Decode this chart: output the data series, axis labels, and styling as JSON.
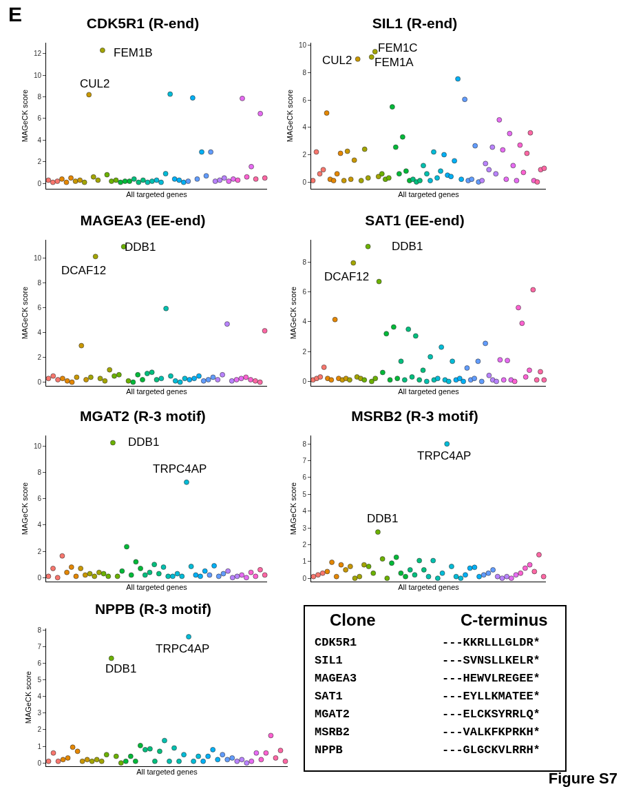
{
  "chart_data": [
    {
      "type": "scatter",
      "title": "CDK5R1 (R-end)",
      "xlabel": "All targeted genes",
      "ylabel": "MAGeCK score",
      "ylim": [
        -0.5,
        13
      ],
      "yticks": [
        0,
        2,
        4,
        6,
        8,
        10,
        12
      ],
      "tick_labels": "y",
      "grid": false,
      "legend": false,
      "marker": "circle",
      "categories": [
        null,
        null,
        null,
        null,
        null,
        null,
        null,
        null,
        null,
        null,
        null,
        null,
        null,
        null,
        null,
        null,
        null,
        null,
        null,
        null,
        null,
        null,
        null,
        null,
        null,
        null,
        null,
        null,
        null,
        null,
        null,
        null,
        null,
        null,
        null,
        null,
        null,
        null,
        null,
        null,
        null,
        null,
        null,
        null,
        null,
        null,
        null,
        null,
        null
      ],
      "values": [
        0.3,
        0.1,
        0.2,
        0.4,
        0.1,
        0.5,
        0.2,
        0.3,
        0.1,
        8.2,
        0.6,
        0.3,
        12.3,
        0.8,
        0.2,
        0.3,
        0.1,
        0.2,
        0.2,
        0.4,
        0.1,
        0.3,
        0.1,
        0.2,
        0.3,
        0.1,
        0.9,
        8.25,
        0.4,
        0.3,
        0.1,
        0.2,
        7.9,
        0.4,
        2.9,
        0.7,
        2.9,
        0.2,
        0.3,
        0.5,
        0.2,
        0.4,
        0.3,
        7.85,
        0.6,
        1.55,
        0.4,
        6.45,
        0.5
      ],
      "colors": [
        "#F8766D",
        "#F8766D",
        "#F8766D",
        "#E58700",
        "#E58700",
        "#E58700",
        "#C99800",
        "#C99800",
        "#A3A500",
        "#C99800",
        "#A3A500",
        "#A3A500",
        "#A3A500",
        "#6BB100",
        "#6BB100",
        "#6BB100",
        "#00BA38",
        "#00BA38",
        "#00BA38",
        "#00BF7D",
        "#00BF7D",
        "#00BF7D",
        "#00C0AF",
        "#00C0AF",
        "#00BCD8",
        "#00BCD8",
        "#00BCD8",
        "#00BCD8",
        "#00B0F6",
        "#00B0F6",
        "#00B0F6",
        "#619CFF",
        "#00B0F6",
        "#619CFF",
        "#00B0F6",
        "#619CFF",
        "#619CFF",
        "#B983FF",
        "#B983FF",
        "#B983FF",
        "#E76BF3",
        "#E76BF3",
        "#FD61D1",
        "#E76BF3",
        "#FD61D1",
        "#E76BF3",
        "#FF67A4",
        "#E76BF3",
        "#FF67A4"
      ],
      "annotations": [
        "E",
        "CUL2",
        "FEM1B"
      ]
    },
    {
      "type": "scatter",
      "title": "SIL1 (R-end)",
      "xlabel": "All targeted genes",
      "ylabel": "MAGeCK score",
      "ylim": [
        -0.5,
        10.2
      ],
      "yticks": [
        0,
        2,
        4,
        6,
        8,
        10
      ],
      "tick_labels": "y",
      "grid": false,
      "legend": false,
      "marker": "circle",
      "categories": [
        null,
        null,
        null,
        null,
        null,
        null,
        null,
        null,
        null,
        null,
        null,
        null,
        null,
        null,
        null,
        null,
        null,
        null,
        null,
        null,
        null,
        null,
        null,
        null,
        null,
        null,
        null,
        null,
        null,
        null,
        null,
        null,
        null,
        null,
        null,
        null,
        null,
        null,
        null,
        null,
        null,
        null,
        null,
        null,
        null,
        null,
        null,
        null,
        null,
        null,
        null,
        null,
        null,
        null,
        null,
        null,
        null,
        null,
        null,
        null,
        null,
        null,
        null,
        null,
        null,
        null,
        null,
        null
      ],
      "values": [
        0.1,
        2.2,
        0.6,
        0.9,
        5.05,
        0.2,
        0.1,
        0.6,
        2.1,
        0.1,
        2.25,
        0.2,
        1.6,
        9.0,
        0.1,
        2.4,
        0.3,
        9.15,
        9.55,
        0.4,
        0.6,
        0.2,
        0.3,
        5.5,
        2.55,
        0.6,
        3.3,
        0.8,
        0.1,
        0.2,
        0.0,
        0.1,
        1.2,
        0.6,
        0.1,
        2.2,
        0.3,
        0.8,
        2.0,
        0.5,
        0.4,
        1.55,
        7.55,
        0.2,
        6.05,
        0.1,
        0.2,
        2.65,
        0.0,
        0.1,
        1.35,
        0.9,
        2.55,
        0.6,
        4.55,
        2.35,
        0.2,
        3.55,
        1.2,
        0.1,
        2.7,
        0.7,
        2.1,
        3.6,
        0.1,
        0.0,
        0.9,
        1.0
      ],
      "colors": [
        "#F8766D",
        "#F8766D",
        "#F8766D",
        "#F8766D",
        "#E58700",
        "#E58700",
        "#E58700",
        "#E58700",
        "#E58700",
        "#C99800",
        "#C99800",
        "#C99800",
        "#C99800",
        "#C99800",
        "#A3A500",
        "#A3A500",
        "#A3A500",
        "#A3A500",
        "#A3A500",
        "#A3A500",
        "#6BB100",
        "#6BB100",
        "#6BB100",
        "#00BA38",
        "#00BA38",
        "#00BA38",
        "#00BA38",
        "#00BA38",
        "#00BA38",
        "#00BF7D",
        "#00BF7D",
        "#00BF7D",
        "#00C0AF",
        "#00C0AF",
        "#00BCD8",
        "#00BCD8",
        "#00BCD8",
        "#00BCD8",
        "#00B0F6",
        "#00B0F6",
        "#00B0F6",
        "#00B0F6",
        "#00B0F6",
        "#00B0F6",
        "#619CFF",
        "#619CFF",
        "#619CFF",
        "#619CFF",
        "#619CFF",
        "#B983FF",
        "#B983FF",
        "#B983FF",
        "#B983FF",
        "#B983FF",
        "#E76BF3",
        "#E76BF3",
        "#E76BF3",
        "#E76BF3",
        "#E76BF3",
        "#E76BF3",
        "#FD61D1",
        "#FD61D1",
        "#FF67A4",
        "#FF67A4",
        "#FD61D1",
        "#FF67A4",
        "#FF67A4",
        "#FF67A4"
      ],
      "annotations": [
        "CUL2",
        "FEM1C",
        "FEM1A"
      ]
    },
    {
      "type": "scatter",
      "title": "MAGEA3 (EE-end)",
      "xlabel": "All targeted genes",
      "ylabel": "MAGeCK score",
      "ylim": [
        -0.3,
        11.5
      ],
      "yticks": [
        0,
        2,
        4,
        6,
        8,
        10
      ],
      "tick_labels": "y",
      "grid": false,
      "legend": false,
      "marker": "circle",
      "categories": [
        null,
        null,
        null,
        null,
        null,
        null,
        null,
        null,
        null,
        null,
        null,
        null,
        null,
        null,
        null,
        null,
        null,
        null,
        null,
        null,
        null,
        null,
        null,
        null,
        null,
        null,
        null,
        null,
        null,
        null,
        null,
        null,
        null,
        null,
        null,
        null,
        null,
        null,
        null,
        null,
        null,
        null,
        null,
        null,
        null,
        null,
        null
      ],
      "values": [
        0.3,
        0.5,
        0.2,
        0.3,
        0.1,
        0.0,
        0.4,
        2.95,
        0.2,
        0.4,
        10.15,
        0.3,
        0.1,
        1.0,
        0.5,
        0.6,
        10.95,
        0.1,
        0.0,
        0.6,
        0.2,
        0.7,
        0.8,
        0.2,
        0.3,
        5.95,
        0.5,
        0.1,
        0.0,
        0.3,
        0.2,
        0.3,
        0.5,
        0.1,
        0.2,
        0.4,
        0.2,
        0.6,
        4.7,
        0.1,
        0.2,
        0.3,
        0.4,
        0.2,
        0.1,
        0.0,
        4.15
      ],
      "colors": [
        "#F8766D",
        "#F8766D",
        "#F8766D",
        "#E58700",
        "#E58700",
        "#E58700",
        "#C99800",
        "#C99800",
        "#C99800",
        "#A3A500",
        "#A3A500",
        "#A3A500",
        "#A3A500",
        "#A3A500",
        "#6BB100",
        "#6BB100",
        "#6BB100",
        "#6BB100",
        "#00BA38",
        "#00BA38",
        "#00BA38",
        "#00BF7D",
        "#00BF7D",
        "#00BF7D",
        "#00C0AF",
        "#00C0AF",
        "#00C0AF",
        "#00BCD8",
        "#00BCD8",
        "#00BCD8",
        "#00B0F6",
        "#00B0F6",
        "#00B0F6",
        "#619CFF",
        "#619CFF",
        "#619CFF",
        "#B983FF",
        "#B983FF",
        "#B983FF",
        "#B983FF",
        "#E76BF3",
        "#E76BF3",
        "#FD61D1",
        "#FD61D1",
        "#FF67A4",
        "#FF67A4",
        "#FF67A4"
      ],
      "annotations": [
        "DCAF12",
        "DDB1"
      ]
    },
    {
      "type": "scatter",
      "title": "SAT1 (EE-end)",
      "xlabel": "All targeted genes",
      "ylabel": "MAGeCK score",
      "ylim": [
        -0.3,
        9.5
      ],
      "yticks": [
        0,
        2,
        4,
        6,
        8
      ],
      "tick_labels": "y",
      "grid": false,
      "legend": false,
      "marker": "circle",
      "categories": [
        null,
        null,
        null,
        null,
        null,
        null,
        null,
        null,
        null,
        null,
        null,
        null,
        null,
        null,
        null,
        null,
        null,
        null,
        null,
        null,
        null,
        null,
        null,
        null,
        null,
        null,
        null,
        null,
        null,
        null,
        null,
        null,
        null,
        null,
        null,
        null,
        null,
        null,
        null,
        null,
        null,
        null,
        null,
        null,
        null,
        null,
        null,
        null,
        null,
        null,
        null,
        null,
        null,
        null,
        null,
        null,
        null,
        null,
        null,
        null,
        null,
        null,
        null,
        null
      ],
      "values": [
        0.1,
        0.2,
        0.3,
        0.95,
        0.2,
        0.1,
        4.15,
        0.2,
        0.1,
        0.2,
        0.1,
        7.95,
        0.3,
        0.2,
        0.1,
        9.05,
        0.0,
        0.2,
        6.7,
        0.6,
        3.2,
        0.1,
        3.65,
        0.2,
        1.35,
        0.1,
        3.5,
        0.3,
        3.05,
        0.1,
        0.75,
        0.0,
        1.65,
        0.1,
        0.2,
        2.3,
        0.1,
        0.0,
        1.35,
        0.1,
        0.2,
        0.0,
        0.9,
        0.1,
        0.2,
        1.35,
        0.0,
        2.55,
        0.4,
        0.1,
        0.0,
        1.45,
        0.1,
        1.4,
        0.1,
        0.0,
        4.95,
        3.9,
        0.3,
        0.75,
        6.15,
        0.1,
        0.65,
        0.1
      ],
      "colors": [
        "#F8766D",
        "#F8766D",
        "#F8766D",
        "#F8766D",
        "#E58700",
        "#E58700",
        "#E58700",
        "#E58700",
        "#C99800",
        "#C99800",
        "#A3A500",
        "#A3A500",
        "#A3A500",
        "#A3A500",
        "#6BB100",
        "#6BB100",
        "#6BB100",
        "#6BB100",
        "#6BB100",
        "#00BA38",
        "#00BA38",
        "#00BA38",
        "#00BA38",
        "#00BA38",
        "#00BF7D",
        "#00BF7D",
        "#00BF7D",
        "#00BF7D",
        "#00BF7D",
        "#00BF7D",
        "#00BF7D",
        "#00C0AF",
        "#00C0AF",
        "#00C0AF",
        "#00BCD8",
        "#00BCD8",
        "#00BCD8",
        "#00BCD8",
        "#00BCD8",
        "#00B0F6",
        "#00B0F6",
        "#00B0F6",
        "#619CFF",
        "#619CFF",
        "#619CFF",
        "#619CFF",
        "#619CFF",
        "#619CFF",
        "#B983FF",
        "#B983FF",
        "#B983FF",
        "#E76BF3",
        "#E76BF3",
        "#E76BF3",
        "#E76BF3",
        "#FD61D1",
        "#FD61D1",
        "#FD61D1",
        "#FD61D1",
        "#FD61D1",
        "#FF67A4",
        "#FF67A4",
        "#FF67A4",
        "#FF67A4"
      ],
      "annotations": [
        "DCAF12",
        "DDB1"
      ]
    },
    {
      "type": "scatter",
      "title": "MGAT2 (R-3 motif)",
      "xlabel": "All targeted genes",
      "ylabel": "MAGeCK score",
      "ylim": [
        -0.3,
        10.8
      ],
      "yticks": [
        0,
        2,
        4,
        6,
        8,
        10
      ],
      "tick_labels": "y",
      "grid": false,
      "legend": false,
      "marker": "circle",
      "categories": [
        null,
        null,
        null,
        null,
        null,
        null,
        null,
        null,
        null,
        null,
        null,
        null,
        null,
        null,
        null,
        null,
        null,
        null,
        null,
        null,
        null,
        null,
        null,
        null,
        null,
        null,
        null,
        null,
        null,
        null,
        null,
        null,
        null,
        null,
        null,
        null,
        null,
        null,
        null,
        null,
        null,
        null,
        null,
        null,
        null,
        null,
        null,
        null
      ],
      "values": [
        0.1,
        0.7,
        0.0,
        1.65,
        0.4,
        0.8,
        0.1,
        0.7,
        0.2,
        0.3,
        0.1,
        0.4,
        0.3,
        0.1,
        10.25,
        0.1,
        0.5,
        2.35,
        0.2,
        1.2,
        0.7,
        0.2,
        0.4,
        1.0,
        0.3,
        0.8,
        0.1,
        0.1,
        0.3,
        0.1,
        7.25,
        0.85,
        0.2,
        0.1,
        0.5,
        0.2,
        0.9,
        0.1,
        0.3,
        0.5,
        0.0,
        0.1,
        0.2,
        0.0,
        0.4,
        0.1,
        0.6,
        0.2
      ],
      "colors": [
        "#F8766D",
        "#F8766D",
        "#F8766D",
        "#F8766D",
        "#E58700",
        "#E58700",
        "#E58700",
        "#C99800",
        "#C99800",
        "#A3A500",
        "#A3A500",
        "#A3A500",
        "#6BB100",
        "#6BB100",
        "#6BB100",
        "#6BB100",
        "#00BA38",
        "#00BA38",
        "#00BA38",
        "#00BA38",
        "#00BA38",
        "#00BF7D",
        "#00BF7D",
        "#00BF7D",
        "#00BF7D",
        "#00C0AF",
        "#00C0AF",
        "#00BCD8",
        "#00BCD8",
        "#00BCD8",
        "#00BCD8",
        "#00BCD8",
        "#00B0F6",
        "#00B0F6",
        "#00B0F6",
        "#619CFF",
        "#00B0F6",
        "#619CFF",
        "#619CFF",
        "#B983FF",
        "#B983FF",
        "#B983FF",
        "#E76BF3",
        "#E76BF3",
        "#FD61D1",
        "#FD61D1",
        "#FF67A4",
        "#FF67A4"
      ],
      "annotations": [
        "DDB1",
        "TRPC4AP"
      ]
    },
    {
      "type": "scatter",
      "title": "MSRB2 (R-3 motif)",
      "xlabel": "All targeted genes",
      "ylabel": "MAGeCK score",
      "ylim": [
        -0.2,
        8.5
      ],
      "yticks": [
        0,
        1,
        2,
        3,
        4,
        5,
        6,
        7,
        8
      ],
      "tick_labels": "y",
      "grid": false,
      "legend": false,
      "marker": "circle",
      "categories": [
        null,
        null,
        null,
        null,
        null,
        null,
        null,
        null,
        null,
        null,
        null,
        null,
        null,
        null,
        null,
        null,
        null,
        null,
        null,
        null,
        null,
        null,
        null,
        null,
        null,
        null,
        null,
        null,
        null,
        null,
        null,
        null,
        null,
        null,
        null,
        null,
        null,
        null,
        null,
        null,
        null,
        null,
        null,
        null,
        null,
        null,
        null,
        null,
        null,
        null,
        null
      ],
      "values": [
        0.1,
        0.2,
        0.3,
        0.4,
        0.95,
        0.1,
        0.8,
        0.5,
        0.7,
        0.0,
        0.1,
        0.8,
        0.7,
        0.3,
        2.75,
        1.15,
        0.0,
        0.9,
        1.25,
        0.3,
        0.1,
        0.5,
        0.2,
        1.05,
        0.5,
        0.1,
        1.05,
        0.0,
        0.3,
        8.0,
        0.7,
        0.1,
        0.0,
        0.2,
        0.6,
        0.65,
        0.1,
        0.2,
        0.3,
        0.5,
        0.1,
        0.0,
        0.1,
        0.0,
        0.2,
        0.3,
        0.6,
        0.8,
        0.4,
        1.4,
        0.1
      ],
      "colors": [
        "#F8766D",
        "#F8766D",
        "#F8766D",
        "#E58700",
        "#E58700",
        "#E58700",
        "#E58700",
        "#C99800",
        "#C99800",
        "#A3A500",
        "#A3A500",
        "#A3A500",
        "#6BB100",
        "#6BB100",
        "#6BB100",
        "#6BB100",
        "#6BB100",
        "#00BA38",
        "#00BA38",
        "#00BA38",
        "#00BA38",
        "#00BF7D",
        "#00BF7D",
        "#00BF7D",
        "#00BF7D",
        "#00C0AF",
        "#00C0AF",
        "#00C0AF",
        "#00BCD8",
        "#00BCD8",
        "#00BCD8",
        "#00BCD8",
        "#00BCD8",
        "#00B0F6",
        "#00B0F6",
        "#00B0F6",
        "#00B0F6",
        "#619CFF",
        "#619CFF",
        "#619CFF",
        "#B983FF",
        "#B983FF",
        "#B983FF",
        "#E76BF3",
        "#E76BF3",
        "#FD61D1",
        "#FD61D1",
        "#FD61D1",
        "#FF67A4",
        "#FF67A4",
        "#FF67A4"
      ],
      "annotations": [
        "TRPC4AP",
        "DDB1"
      ]
    },
    {
      "type": "scatter",
      "title": "NPPB (R-3 motif)",
      "xlabel": "All targeted genes",
      "ylabel": "MAGeCK score",
      "ylim": [
        -0.2,
        8.1
      ],
      "yticks": [
        0,
        1,
        2,
        3,
        4,
        5,
        6,
        7,
        8
      ],
      "tick_labels": "y",
      "grid": false,
      "legend": false,
      "marker": "circle",
      "categories": [
        null,
        null,
        null,
        null,
        null,
        null,
        null,
        null,
        null,
        null,
        null,
        null,
        null,
        null,
        null,
        null,
        null,
        null,
        null,
        null,
        null,
        null,
        null,
        null,
        null,
        null,
        null,
        null,
        null,
        null,
        null,
        null,
        null,
        null,
        null,
        null,
        null,
        null,
        null,
        null,
        null,
        null,
        null,
        null,
        null,
        null,
        null,
        null,
        null,
        null
      ],
      "values": [
        0.1,
        0.6,
        0.1,
        0.2,
        0.3,
        0.95,
        0.7,
        0.1,
        0.2,
        0.1,
        0.2,
        0.1,
        0.5,
        6.3,
        0.4,
        0.0,
        0.1,
        0.4,
        0.1,
        1.05,
        0.8,
        0.85,
        0.1,
        0.7,
        1.35,
        0.1,
        0.9,
        0.1,
        0.5,
        7.6,
        0.1,
        0.4,
        0.1,
        0.4,
        0.8,
        0.2,
        0.5,
        0.2,
        0.3,
        0.1,
        0.2,
        0.0,
        0.1,
        0.6,
        0.2,
        0.6,
        1.65,
        0.3,
        0.75,
        0.1
      ],
      "colors": [
        "#F8766D",
        "#F8766D",
        "#F8766D",
        "#E58700",
        "#E58700",
        "#E58700",
        "#E58700",
        "#C99800",
        "#C99800",
        "#A3A500",
        "#A3A500",
        "#A3A500",
        "#6BB100",
        "#6BB100",
        "#6BB100",
        "#6BB100",
        "#00BA38",
        "#00BA38",
        "#00BA38",
        "#00BA38",
        "#00BF7D",
        "#00BF7D",
        "#00BF7D",
        "#00BF7D",
        "#00C0AF",
        "#00C0AF",
        "#00C0AF",
        "#00C0AF",
        "#00BCD8",
        "#00BCD8",
        "#00BCD8",
        "#00BCD8",
        "#00B0F6",
        "#00B0F6",
        "#00B0F6",
        "#00B0F6",
        "#619CFF",
        "#619CFF",
        "#619CFF",
        "#B983FF",
        "#B983FF",
        "#B983FF",
        "#E76BF3",
        "#E76BF3",
        "#FD61D1",
        "#FD61D1",
        "#FD61D1",
        "#FF67A4",
        "#FF67A4",
        "#FF67A4"
      ],
      "annotations": [
        "DDB1",
        "TRPC4AP"
      ]
    },
    {
      "type": "other",
      "categories": [
        "CDK5R1",
        "SIL1",
        "MAGEA3",
        "SAT1",
        "MGAT2",
        "MSRB2",
        "NPPB"
      ],
      "annotations": [
        "Clone",
        "C-terminus",
        "---KKRLLLGLDR*",
        "---SVNSLLKELR*",
        "---HEWVLREGEE*",
        "---EYLLKMATEE*",
        "---ELCKSYRRLQ*",
        "---VALKFKPRKH*",
        "---GLGCKVLRRH*",
        "Figure S7"
      ]
    }
  ]
}
